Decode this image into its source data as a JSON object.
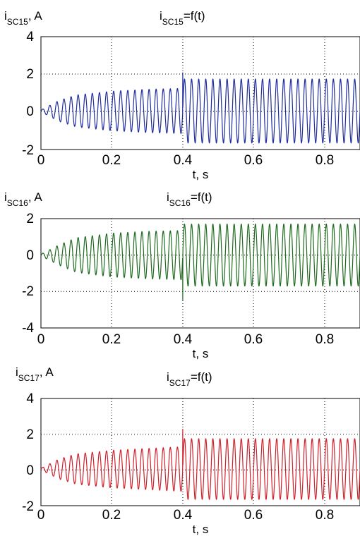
{
  "chart_data": [
    {
      "type": "line",
      "ylabel_main": "i",
      "ylabel_sub": "SC15",
      "ylabel_unit": ", A",
      "title_main": "i",
      "title_sub": "SC15",
      "title_rest": "=f(t)",
      "xlabel": "t, s",
      "xlim": [
        0,
        0.9
      ],
      "ylim": [
        -2,
        4
      ],
      "xticks": [
        0,
        0.2,
        0.4,
        0.6,
        0.8
      ],
      "xtick_labels": [
        "0",
        "0.2",
        "0.4",
        "0.6",
        "0.8"
      ],
      "yticks": [
        -2,
        0,
        2,
        4
      ],
      "ytick_labels": [
        "-2",
        "0",
        "2",
        "4"
      ],
      "grid": "dotted",
      "color": "#1f2d9e",
      "signal": {
        "frequency_hz": 50,
        "offset": 0.05,
        "envelope_before_0_4s": [
          [
            0,
            0.05
          ],
          [
            0.05,
            0.55
          ],
          [
            0.1,
            0.85
          ],
          [
            0.2,
            1.05
          ],
          [
            0.3,
            1.15
          ],
          [
            0.4,
            1.2
          ]
        ],
        "amplitude_after_0_4s": 1.7,
        "peak_at_0_4s": 2.1
      }
    },
    {
      "type": "line",
      "ylabel_main": "i",
      "ylabel_sub": "SC16",
      "ylabel_unit": ", A",
      "title_main": "i",
      "title_sub": "SC16",
      "title_rest": "=f(t)",
      "xlabel": "t, s",
      "xlim": [
        0,
        0.9
      ],
      "ylim": [
        -4,
        2
      ],
      "xticks": [
        0,
        0.2,
        0.4,
        0.6,
        0.8
      ],
      "xtick_labels": [
        "0",
        "0.2",
        "0.4",
        "0.6",
        "0.8"
      ],
      "yticks": [
        -4,
        -2,
        0,
        2
      ],
      "ytick_labels": [
        "-4",
        "-2",
        "0",
        "2"
      ],
      "grid": "dotted",
      "color": "#1e6b1e",
      "signal": {
        "frequency_hz": 50,
        "offset": 0.0,
        "envelope_before_0_4s": [
          [
            0,
            0.05
          ],
          [
            0.05,
            0.55
          ],
          [
            0.1,
            0.95
          ],
          [
            0.2,
            1.2
          ],
          [
            0.3,
            1.3
          ],
          [
            0.4,
            1.35
          ]
        ],
        "amplitude_after_0_4s": 1.7,
        "peak_at_0_4s": -2.5
      }
    },
    {
      "type": "line",
      "ylabel_main": "i",
      "ylabel_sub": "SC17",
      "ylabel_unit": ", A",
      "title_main": "i",
      "title_sub": "SC17",
      "title_rest": "=f(t)",
      "xlabel": "t, s",
      "xlim": [
        0,
        0.9
      ],
      "ylim": [
        -2,
        4
      ],
      "xticks": [
        0,
        0.2,
        0.4,
        0.6,
        0.8
      ],
      "xtick_labels": [
        "0",
        "0.2",
        "0.4",
        "0.6",
        "0.8"
      ],
      "yticks": [
        -2,
        0,
        2,
        4
      ],
      "ytick_labels": [
        "-2",
        "0",
        "2",
        "4"
      ],
      "grid": "dotted",
      "color": "#d0202a",
      "signal": {
        "frequency_hz": 50,
        "offset": 0.05,
        "envelope_before_0_4s": [
          [
            0,
            0.05
          ],
          [
            0.05,
            0.55
          ],
          [
            0.1,
            0.85
          ],
          [
            0.2,
            1.05
          ],
          [
            0.3,
            1.15
          ],
          [
            0.4,
            1.25
          ]
        ],
        "amplitude_after_0_4s": 1.7,
        "peak_at_0_4s": 2.3
      }
    }
  ]
}
